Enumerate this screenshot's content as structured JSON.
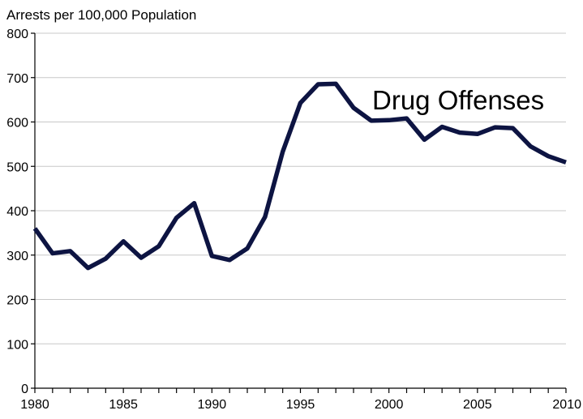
{
  "chart_data": {
    "type": "line",
    "title": "",
    "ylabel": "Arrests per 100,000 Population",
    "xlabel": "",
    "xlim": [
      1980,
      2010
    ],
    "ylim": [
      0,
      800
    ],
    "x_ticks": [
      1980,
      1985,
      1990,
      1995,
      2000,
      2005,
      2010
    ],
    "y_ticks": [
      0,
      100,
      200,
      300,
      400,
      500,
      600,
      700,
      800
    ],
    "grid": "horizontal",
    "legend": "none",
    "series": [
      {
        "name": "Drug Offenses",
        "color": "#0d1442",
        "x": [
          1980,
          1981,
          1982,
          1983,
          1984,
          1985,
          1986,
          1987,
          1988,
          1989,
          1990,
          1991,
          1992,
          1993,
          1994,
          1995,
          1996,
          1997,
          1998,
          1999,
          2000,
          2001,
          2002,
          2003,
          2004,
          2005,
          2006,
          2007,
          2008,
          2009,
          2010
        ],
        "values": [
          360,
          304,
          309,
          271,
          292,
          331,
          294,
          320,
          384,
          417,
          298,
          289,
          315,
          386,
          533,
          643,
          685,
          686,
          632,
          603,
          604,
          608,
          560,
          589,
          576,
          573,
          588,
          586,
          545,
          523,
          509
        ]
      }
    ]
  }
}
